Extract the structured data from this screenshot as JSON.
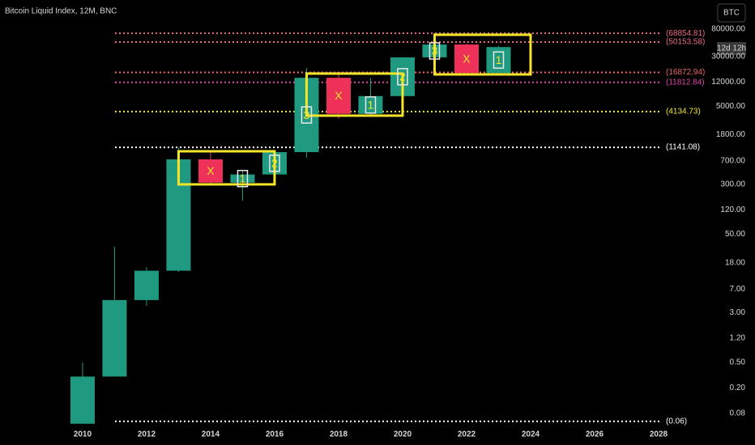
{
  "chart_data": {
    "type": "candlestick",
    "title": "Bitcoin Liquid Index, 12M, BNC",
    "symbol": "BTC",
    "countdown": "12d 12h",
    "x": [
      2010,
      2011,
      2012,
      2013,
      2014,
      2015,
      2016,
      2017,
      2018,
      2019,
      2020,
      2021,
      2022,
      2023
    ],
    "open": [
      0.055,
      0.3,
      4.7,
      13.5,
      740,
      320,
      430,
      960,
      13900,
      3800,
      7200,
      29000,
      46000,
      16500
    ],
    "high": [
      0.5,
      32,
      15.4,
      1150,
      1000,
      500,
      980,
      19800,
      17200,
      13800,
      29300,
      69000,
      48000,
      44000
    ],
    "low": [
      0.055,
      0.3,
      3.8,
      13,
      310,
      168,
      360,
      780,
      3200,
      3400,
      3900,
      28000,
      15500,
      16500
    ],
    "close": [
      0.3,
      4.7,
      13.5,
      740,
      320,
      430,
      960,
      13900,
      3800,
      7200,
      29000,
      46000,
      16500,
      42000
    ],
    "up_color": "#1f9a80",
    "down_color": "#ee3158",
    "log_scale": true,
    "grid": false,
    "xlim": [
      2007.42,
      2029.19
    ],
    "xticks": [
      2010,
      2012,
      2014,
      2016,
      2018,
      2020,
      2022,
      2024,
      2026,
      2028
    ],
    "ylim": [
      0.053,
      101000
    ],
    "yticks": [
      {
        "value": 80000,
        "label": "80000.00"
      },
      {
        "value": 30000,
        "label": "30000.00"
      },
      {
        "value": 12000,
        "label": "12000.00"
      },
      {
        "value": 5000,
        "label": "5000.00"
      },
      {
        "value": 1800,
        "label": "1800.00"
      },
      {
        "value": 700,
        "label": "700.00"
      },
      {
        "value": 300,
        "label": "300.00"
      },
      {
        "value": 120,
        "label": "120.00"
      },
      {
        "value": 50,
        "label": "50.00"
      },
      {
        "value": 18,
        "label": "18.00"
      },
      {
        "value": 7,
        "label": "7.00"
      },
      {
        "value": 3,
        "label": "3.00"
      },
      {
        "value": 1.2,
        "label": "1.20"
      },
      {
        "value": 0.5,
        "label": "0.50"
      },
      {
        "value": 0.2,
        "label": "0.20"
      },
      {
        "value": 0.08,
        "label": "0.08"
      }
    ],
    "price_lines": [
      {
        "value": 68854.81,
        "label": "(68854.81)",
        "color": "#e86a86"
      },
      {
        "value": 50153.58,
        "label": "(50153.58)",
        "color": "#e86a86"
      },
      {
        "value": 16872.94,
        "label": "(16872.94)",
        "color": "#f06464"
      },
      {
        "value": 11812.84,
        "label": "(11812.84)",
        "color": "#e044a8"
      },
      {
        "value": 4134.73,
        "label": "(4134.73)",
        "color": "#f2e63a"
      },
      {
        "value": 1141.08,
        "label": "(1141.08)",
        "color": "#ffffff"
      },
      {
        "value": 0.06,
        "label": "(0.06)",
        "color": "#ffffff"
      }
    ],
    "box_color": "#f5e52a",
    "boxes": [
      {
        "x": [
          2013,
          2016
        ],
        "y": [
          301,
          990
        ]
      },
      {
        "x": [
          2017,
          2020
        ],
        "y": [
          3565,
          16180
        ]
      },
      {
        "x": [
          2021,
          2024
        ],
        "y": [
          15700,
          65300
        ]
      }
    ],
    "markers": [
      {
        "x": 2014,
        "text": "X"
      },
      {
        "x": 2015,
        "text": "1"
      },
      {
        "x": 2016,
        "text": "2"
      },
      {
        "x": 2017,
        "text": "3"
      },
      {
        "x": 2018,
        "text": "X"
      },
      {
        "x": 2019,
        "text": "1"
      },
      {
        "x": 2020,
        "text": "2"
      },
      {
        "x": 2021,
        "text": "3"
      },
      {
        "x": 2022,
        "text": "X"
      },
      {
        "x": 2023,
        "text": "1"
      }
    ]
  }
}
